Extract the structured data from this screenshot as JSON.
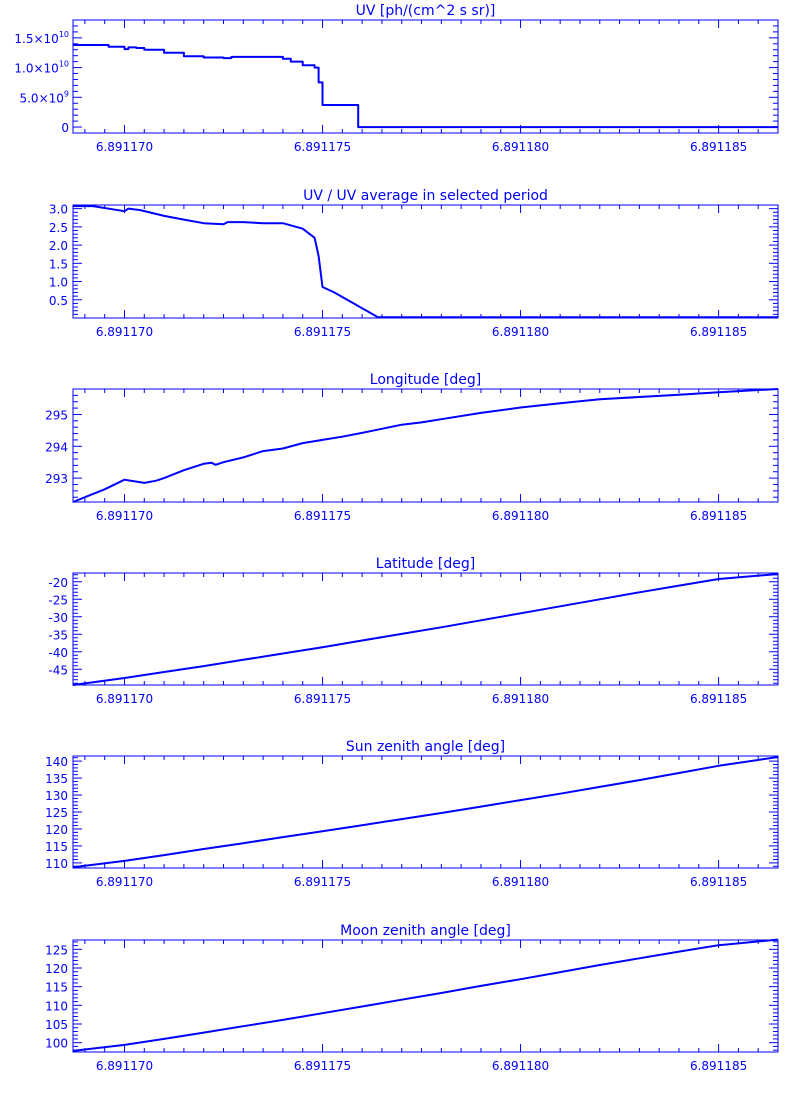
{
  "colors": {
    "ink": "#0000ff",
    "background": "#ffffff"
  },
  "chart_data": [
    {
      "type": "line",
      "title": "UV [ph/(cm^2 s sr)]",
      "xlabel": "",
      "ylabel": "",
      "xlim": [
        6.8911687,
        6.8911865
      ],
      "ylim": [
        -1000000000.0,
        18000000000.0
      ],
      "x_ticks": [
        6.89117,
        6.891175,
        6.89118,
        6.891185
      ],
      "x_tick_labels": [
        "6.891170",
        "6.891175",
        "6.891180",
        "6.891185"
      ],
      "y_ticks": [
        0,
        5000000000.0,
        10000000000.0,
        15000000000.0
      ],
      "y_tick_labels": [
        {
          "mantissa": "0",
          "exp": ""
        },
        {
          "mantissa": "5.0×10",
          "exp": "9"
        },
        {
          "mantissa": "1.0×10",
          "exp": "10"
        },
        {
          "mantissa": "1.5×10",
          "exp": "10"
        }
      ],
      "step": true,
      "x": [
        6.8911687,
        6.8911696,
        6.89117,
        6.8911701,
        6.8911703,
        6.8911705,
        6.891171,
        6.8911715,
        6.891172,
        6.8911725,
        6.8911727,
        6.891173,
        6.8911735,
        6.891174,
        6.8911742,
        6.8911745,
        6.8911748,
        6.8911749,
        6.891175,
        6.8911758,
        6.8911759,
        6.89118,
        6.8911865
      ],
      "values": [
        13800000000.0,
        13500000000.0,
        13100000000.0,
        13400000000.0,
        13300000000.0,
        13000000000.0,
        12500000000.0,
        11900000000.0,
        11700000000.0,
        11600000000.0,
        11800000000.0,
        11800000000.0,
        11800000000.0,
        11500000000.0,
        11000000000.0,
        10400000000.0,
        10000000000.0,
        7500000000.0,
        3700000000.0,
        3700000000.0,
        0,
        0,
        0
      ]
    },
    {
      "type": "line",
      "title": "UV / UV average in selected period",
      "xlabel": "",
      "ylabel": "",
      "xlim": [
        6.8911687,
        6.8911865
      ],
      "ylim": [
        0,
        3.1
      ],
      "x_ticks": [
        6.89117,
        6.891175,
        6.89118,
        6.891185
      ],
      "x_tick_labels": [
        "6.891170",
        "6.891175",
        "6.891180",
        "6.891185"
      ],
      "y_ticks": [
        0.5,
        1.0,
        1.5,
        2.0,
        2.5,
        3.0
      ],
      "y_tick_labels": [
        "0.5",
        "1.0",
        "1.5",
        "2.0",
        "2.5",
        "3.0"
      ],
      "step": false,
      "x": [
        6.8911687,
        6.8911692,
        6.89117,
        6.8911701,
        6.8911704,
        6.891171,
        6.8911715,
        6.891172,
        6.8911725,
        6.8911726,
        6.891173,
        6.8911735,
        6.891174,
        6.8911745,
        6.8911748,
        6.8911749,
        6.891175,
        6.8911753,
        6.8911764,
        6.89118,
        6.8911865
      ],
      "values": [
        3.07,
        3.07,
        2.93,
        3.0,
        2.96,
        2.8,
        2.7,
        2.6,
        2.57,
        2.63,
        2.63,
        2.6,
        2.6,
        2.45,
        2.2,
        1.7,
        0.85,
        0.7,
        0.02,
        0.02,
        0.02
      ]
    },
    {
      "type": "line",
      "title": "Longitude [deg]",
      "xlabel": "",
      "ylabel": "",
      "xlim": [
        6.8911687,
        6.8911865
      ],
      "ylim": [
        292.25,
        295.8
      ],
      "x_ticks": [
        6.89117,
        6.891175,
        6.89118,
        6.891185
      ],
      "x_tick_labels": [
        "6.891170",
        "6.891175",
        "6.891180",
        "6.891185"
      ],
      "y_ticks": [
        293,
        294,
        295
      ],
      "y_tick_labels": [
        "293",
        "294",
        "295"
      ],
      "step": false,
      "x": [
        6.8911687,
        6.891169,
        6.8911695,
        6.89117,
        6.8911705,
        6.8911708,
        6.891171,
        6.8911715,
        6.891172,
        6.8911722,
        6.8911723,
        6.8911725,
        6.891173,
        6.8911735,
        6.891174,
        6.8911745,
        6.891175,
        6.8911755,
        6.891176,
        6.8911765,
        6.891177,
        6.8911775,
        6.891178,
        6.891179,
        6.89118,
        6.891181,
        6.891182,
        6.891183,
        6.891184,
        6.891185,
        6.8911865
      ],
      "values": [
        292.25,
        292.4,
        292.65,
        292.95,
        292.85,
        292.92,
        293.0,
        293.25,
        293.45,
        293.48,
        293.42,
        293.5,
        293.65,
        293.85,
        293.93,
        294.1,
        294.2,
        294.3,
        294.42,
        294.55,
        294.68,
        294.75,
        294.85,
        295.05,
        295.22,
        295.35,
        295.48,
        295.55,
        295.62,
        295.7,
        295.8
      ]
    },
    {
      "type": "line",
      "title": "Latitude [deg]",
      "xlabel": "",
      "ylabel": "",
      "xlim": [
        6.8911687,
        6.8911865
      ],
      "ylim": [
        -49.5,
        -17.5
      ],
      "x_ticks": [
        6.89117,
        6.891175,
        6.89118,
        6.891185
      ],
      "x_tick_labels": [
        "6.891170",
        "6.891175",
        "6.891180",
        "6.891185"
      ],
      "y_ticks": [
        -45,
        -40,
        -35,
        -30,
        -25,
        -20
      ],
      "y_tick_labels": [
        "-45",
        "-40",
        "-35",
        "-30",
        "-25",
        "-20"
      ],
      "step": false,
      "x": [
        6.8911687,
        6.89117,
        6.891171,
        6.891172,
        6.891173,
        6.891174,
        6.891175,
        6.891176,
        6.891177,
        6.891178,
        6.891179,
        6.89118,
        6.891181,
        6.891182,
        6.891183,
        6.891184,
        6.891185,
        6.8911865
      ],
      "values": [
        -49.5,
        -47.5,
        -45.8,
        -44.1,
        -42.3,
        -40.5,
        -38.7,
        -36.8,
        -34.9,
        -33.0,
        -31.0,
        -29.0,
        -27.0,
        -25.0,
        -23.0,
        -21.1,
        -19.2,
        -17.8
      ]
    },
    {
      "type": "line",
      "title": "Sun zenith angle [deg]",
      "xlabel": "",
      "ylabel": "",
      "xlim": [
        6.8911687,
        6.8911865
      ],
      "ylim": [
        108.5,
        141.5
      ],
      "x_ticks": [
        6.89117,
        6.891175,
        6.89118,
        6.891185
      ],
      "x_tick_labels": [
        "6.891170",
        "6.891175",
        "6.891180",
        "6.891185"
      ],
      "y_ticks": [
        110,
        115,
        120,
        125,
        130,
        135,
        140
      ],
      "y_tick_labels": [
        "110",
        "115",
        "120",
        "125",
        "130",
        "135",
        "140"
      ],
      "step": false,
      "x": [
        6.8911687,
        6.89117,
        6.891171,
        6.891172,
        6.891173,
        6.891174,
        6.891175,
        6.891176,
        6.891177,
        6.891178,
        6.891179,
        6.89118,
        6.891181,
        6.891182,
        6.891183,
        6.891184,
        6.891185,
        6.8911865
      ],
      "values": [
        108.7,
        110.6,
        112.3,
        114.1,
        115.8,
        117.6,
        119.3,
        121.1,
        122.9,
        124.7,
        126.6,
        128.5,
        130.4,
        132.4,
        134.4,
        136.5,
        138.6,
        141.2
      ]
    },
    {
      "type": "line",
      "title": "Moon zenith angle [deg]",
      "xlabel": "",
      "ylabel": "",
      "xlim": [
        6.8911687,
        6.8911865
      ],
      "ylim": [
        97.5,
        127.5
      ],
      "x_ticks": [
        6.89117,
        6.891175,
        6.89118,
        6.891185
      ],
      "x_tick_labels": [
        "6.891170",
        "6.891175",
        "6.891180",
        "6.891185"
      ],
      "y_ticks": [
        100,
        105,
        110,
        115,
        120,
        125
      ],
      "y_tick_labels": [
        "100",
        "105",
        "110",
        "115",
        "120",
        "125"
      ],
      "step": false,
      "x": [
        6.8911687,
        6.89117,
        6.891171,
        6.891172,
        6.891173,
        6.891174,
        6.891175,
        6.891176,
        6.891177,
        6.891178,
        6.891179,
        6.89118,
        6.891181,
        6.891182,
        6.891183,
        6.891184,
        6.891185,
        6.8911865
      ],
      "values": [
        97.8,
        99.4,
        101.0,
        102.7,
        104.4,
        106.1,
        107.9,
        109.7,
        111.5,
        113.3,
        115.2,
        117.0,
        118.9,
        120.8,
        122.6,
        124.4,
        126.1,
        127.6
      ]
    }
  ]
}
